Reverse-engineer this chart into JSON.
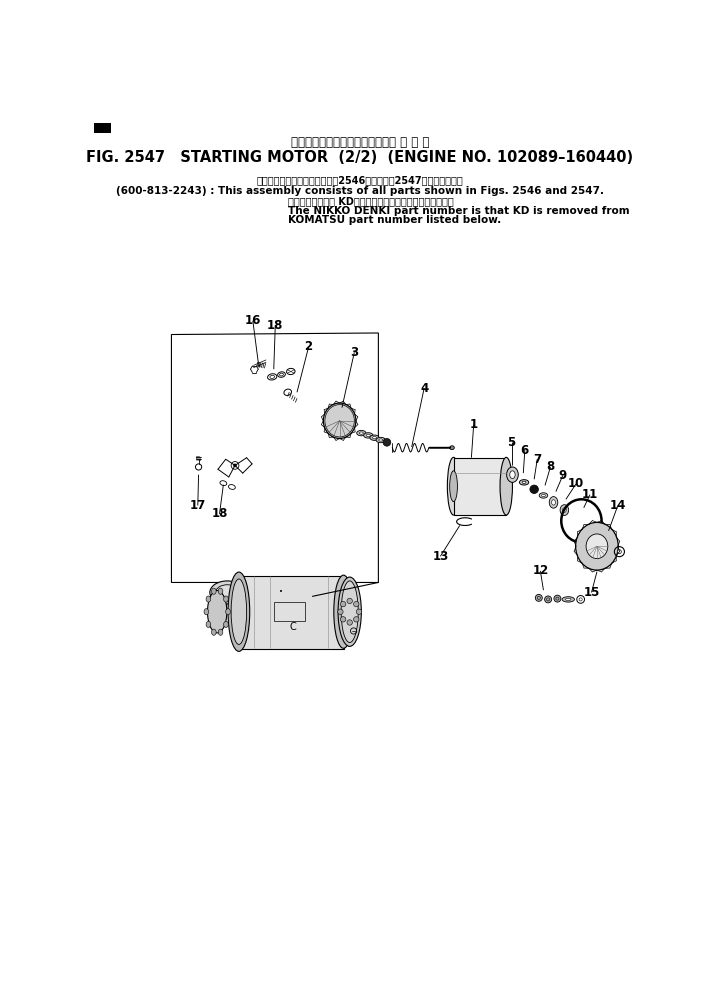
{
  "title_line1": "スターティング　モータ　　　適 用 号 機",
  "title_line2": "FIG. 2547   STARTING MOTOR  (2/2)  (ENGINE NO. 102089–160440)",
  "note_jp1": "このアセンブリの構成部品は第2546図および第2547図を含みます。",
  "note_en1": "(600-813-2243) : This assembly consists of all parts shown in Figs. 2546 and 2547.",
  "note_jp2": "品番のメーカ記号 KDを抜いたものが日興電機の品番です。",
  "note_en2a": "The NIKKO DENKI part number is that KD is removed from",
  "note_en2b": "KOMATSU part number listed below.",
  "bg_color": "#ffffff"
}
